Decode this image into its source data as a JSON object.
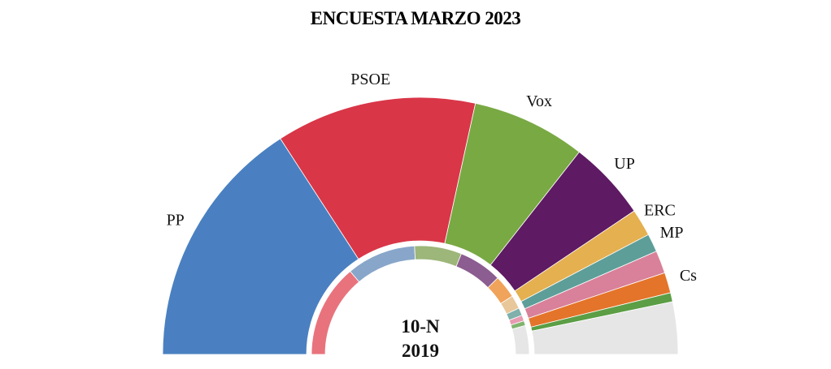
{
  "chart_data": {
    "type": "half-donut",
    "title": "ENCUESTA MARZO 2023",
    "annotations": [
      "10-N",
      "2019"
    ],
    "categories": [
      "PP",
      "PSOE",
      "Vox",
      "UP",
      "ERC",
      "MP",
      null,
      "Cs",
      null,
      null
    ],
    "series": [
      {
        "values": [
          111,
          88,
          50,
          35,
          12,
          8,
          10,
          9,
          4,
          23
        ],
        "colors": [
          "#4a80c1",
          "#d93648",
          "#79a943",
          "#5e1a63",
          "#e5b050",
          "#5e9e99",
          "#d9819a",
          "#e4742a",
          "#5b9e45",
          "#e6e6e6"
        ]
      },
      {
        "values": [
          97,
          72,
          49,
          45,
          24,
          14,
          8,
          6,
          5,
          30
        ],
        "colors": [
          "#e8737d",
          "#88a6c9",
          "#9db67a",
          "#8c5d90",
          "#f0a35a",
          "#e8c79a",
          "#7fb0ab",
          "#e79bb1",
          "#7fb46e",
          "#e6e6e6"
        ]
      }
    ]
  }
}
